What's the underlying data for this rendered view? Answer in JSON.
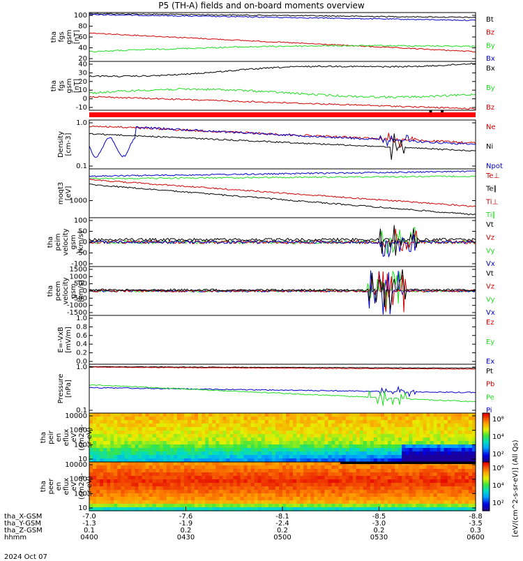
{
  "title": "P5 (TH-A) fields and on-board moments overview",
  "date_label": "2024 Oct 07",
  "colors": {
    "black": "#000000",
    "red": "#d00000",
    "green": "#22dd22",
    "blue": "#0000cc"
  },
  "chart_data": [
    {
      "type": "line",
      "ylabel": [
        "tha",
        "fgs",
        "gsm",
        "[nT]"
      ],
      "yticks": [
        "100",
        "80",
        "60",
        "40",
        "20"
      ],
      "ylim": [
        10,
        105
      ],
      "legend": [
        {
          "name": "Bt",
          "color": "#000000"
        },
        {
          "name": "Bz",
          "color": "#d00000"
        },
        {
          "name": "By",
          "color": "#22dd22"
        },
        {
          "name": "Bx",
          "color": "#0000cc"
        }
      ]
    },
    {
      "type": "line",
      "ylabel": [
        "tha",
        "fgs",
        "gsm",
        "[nT]"
      ],
      "yticks": [
        "40",
        "30",
        "20",
        "10",
        "0",
        "-10"
      ],
      "ylim": [
        -15,
        45
      ],
      "legend": [
        {
          "name": "Bx",
          "color": "#000000"
        },
        {
          "name": "By",
          "color": "#22dd22"
        },
        {
          "name": "Bz",
          "color": "#d00000"
        }
      ]
    },
    {
      "type": "line",
      "ylabel": [
        "Density",
        "[cm-3]"
      ],
      "yticks": [
        "1.0",
        "0.1"
      ],
      "legend": [
        {
          "name": "Ne",
          "color": "#d00000"
        },
        {
          "name": "Ni",
          "color": "#000000"
        },
        {
          "name": "Npot",
          "color": "#0000cc"
        }
      ]
    },
    {
      "type": "line",
      "ylabel": [
        "moqt3",
        "[eV]"
      ],
      "yticks": [
        "1000"
      ],
      "legend": [
        {
          "name": "Te⊥",
          "color": "#d00000"
        },
        {
          "name": "Te∥",
          "color": "#000000"
        },
        {
          "name": "Ti⊥",
          "color": "#d00000"
        },
        {
          "name": "Ti∥",
          "color": "#22dd22"
        }
      ]
    },
    {
      "type": "line",
      "ylabel": [
        "tha",
        "peim",
        "velocity",
        "gsm",
        "[km/s]"
      ],
      "yticks": [
        "100",
        "50",
        "0",
        "-50",
        "-100"
      ],
      "ylim": [
        -125,
        125
      ],
      "legend": [
        {
          "name": "Vt",
          "color": "#000000"
        },
        {
          "name": "Vz",
          "color": "#d00000"
        },
        {
          "name": "Vy",
          "color": "#22dd22"
        },
        {
          "name": "Vx",
          "color": "#0000cc"
        }
      ]
    },
    {
      "type": "line",
      "ylabel": [
        "tha",
        "peem",
        "velocity",
        "gsm",
        "[km/s]"
      ],
      "yticks": [
        "1500",
        "1000",
        "500",
        "0",
        "-500",
        "-1000",
        "-1500"
      ],
      "ylim": [
        -1500,
        1500
      ],
      "legend": [
        {
          "name": "Vt",
          "color": "#000000"
        },
        {
          "name": "Vz",
          "color": "#d00000"
        },
        {
          "name": "Vy",
          "color": "#22dd22"
        },
        {
          "name": "Vx",
          "color": "#0000cc"
        }
      ]
    },
    {
      "type": "line",
      "ylabel": [
        "E=-VxB",
        "[mV/m]"
      ],
      "yticks": [
        "1.0",
        "0.8",
        "0.6",
        "0.4",
        "0.2",
        "0.0"
      ],
      "ylim": [
        0,
        1
      ],
      "legend": [
        {
          "name": "Ez",
          "color": "#d00000"
        },
        {
          "name": "Ey",
          "color": "#22dd22"
        },
        {
          "name": "Ex",
          "color": "#0000cc"
        }
      ]
    },
    {
      "type": "line",
      "ylabel": [
        "Pressure",
        "[nPa]"
      ],
      "yticks": [
        "1.0",
        "0.1"
      ],
      "legend": [
        {
          "name": "Pt",
          "color": "#000000"
        },
        {
          "name": "Pb",
          "color": "#d00000"
        },
        {
          "name": "Pe",
          "color": "#22dd22"
        },
        {
          "name": "Pi",
          "color": "#0000cc"
        }
      ]
    },
    {
      "type": "heatmap",
      "ylabel": [
        "tha",
        "peir",
        "en",
        "eflux",
        "eV",
        "(cm2-s-",
        "sr-eV)"
      ],
      "yticks": [
        "10000",
        "1000",
        "100",
        "10"
      ]
    },
    {
      "type": "heatmap",
      "ylabel": [
        "tha",
        "peer",
        "en",
        "eflux",
        "eV",
        "(cm2-s-",
        "sr-eV)"
      ],
      "yticks": [
        "10000",
        "1000",
        "100",
        "10"
      ]
    }
  ],
  "colorbar": {
    "label": "[eV/(cm^2-s-sr-eV)] (All Qs)",
    "upper_ticks": [
      "10⁸",
      "10⁴",
      "10²"
    ],
    "lower_ticks": [
      "10⁶",
      "10⁴",
      "10²"
    ]
  },
  "xaxis": {
    "rows": [
      {
        "label": "tha_X-GSM",
        "values": [
          "-7.0",
          "-7.6",
          "-8.1",
          "-8.5",
          "-8.8"
        ]
      },
      {
        "label": "tha_Y-GSM",
        "values": [
          "-1.3",
          "-1.9",
          "-2.4",
          "-3.0",
          "-3.5"
        ]
      },
      {
        "label": "tha_Z-GSM",
        "values": [
          "0.1",
          "0.2",
          "0.2",
          "0.2",
          "0.3"
        ]
      },
      {
        "label": "hhmm",
        "values": [
          "0400",
          "0430",
          "0500",
          "0530",
          "0600"
        ]
      }
    ]
  }
}
